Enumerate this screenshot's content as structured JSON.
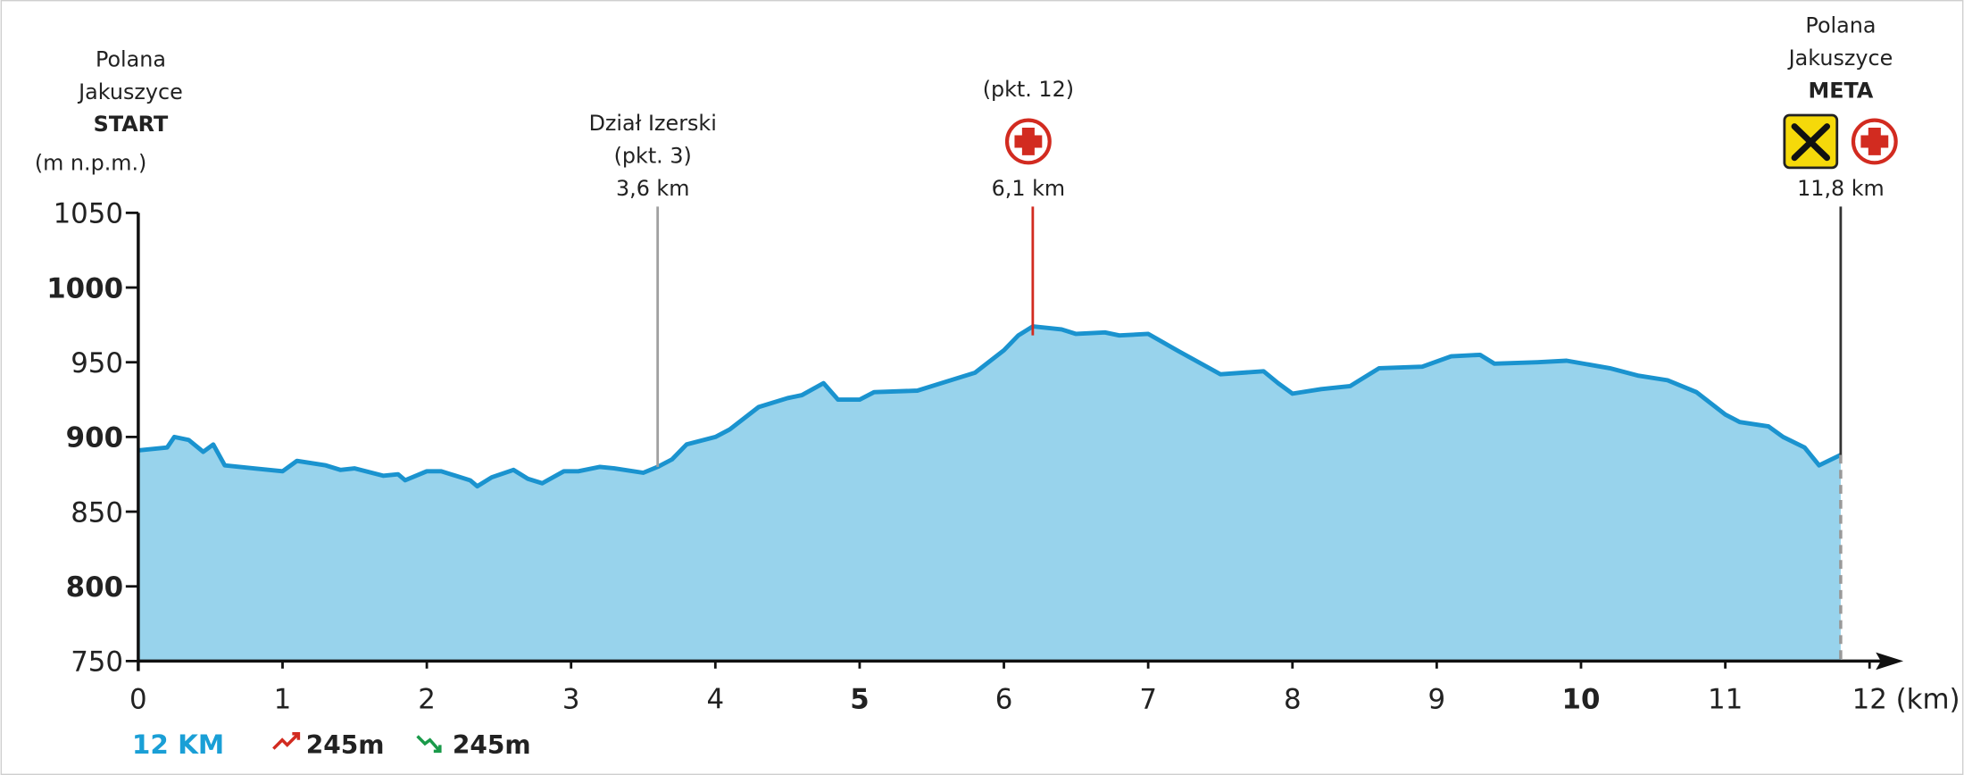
{
  "chart_data": {
    "type": "area",
    "title": "",
    "xlabel": "(km)",
    "ylabel": "(m n.p.m.)",
    "xlim": [
      0,
      12
    ],
    "ylim": [
      750,
      1050
    ],
    "xticks": [
      "0",
      "1",
      "2",
      "3",
      "4",
      "5",
      "6",
      "7",
      "8",
      "9",
      "10",
      "11",
      "12"
    ],
    "xticks_bold": [
      "5",
      "10"
    ],
    "yticks": [
      "750",
      "800",
      "850",
      "900",
      "950",
      "1000",
      "1050"
    ],
    "yticks_bold": [
      "800",
      "900",
      "1000"
    ],
    "colors": {
      "fill": "#98d3ec",
      "line": "#1a93cf"
    },
    "x": [
      0,
      0.2,
      0.25,
      0.35,
      0.45,
      0.52,
      0.6,
      0.8,
      1.0,
      1.1,
      1.3,
      1.4,
      1.5,
      1.7,
      1.8,
      1.85,
      2.0,
      2.1,
      2.3,
      2.35,
      2.45,
      2.6,
      2.7,
      2.8,
      2.95,
      3.05,
      3.2,
      3.3,
      3.5,
      3.6,
      3.7,
      3.8,
      4.0,
      4.1,
      4.3,
      4.5,
      4.6,
      4.75,
      4.85,
      5.0,
      5.1,
      5.4,
      5.6,
      5.8,
      6.0,
      6.1,
      6.2,
      6.4,
      6.5,
      6.7,
      6.8,
      7.0,
      7.2,
      7.5,
      7.8,
      7.9,
      8.0,
      8.2,
      8.4,
      8.6,
      8.9,
      9.1,
      9.3,
      9.4,
      9.7,
      9.9,
      10.2,
      10.4,
      10.6,
      10.8,
      11.0,
      11.1,
      11.3,
      11.4,
      11.55,
      11.65,
      11.8
    ],
    "y": [
      891,
      893,
      900,
      898,
      890,
      895,
      881,
      879,
      877,
      884,
      881,
      878,
      879,
      874,
      875,
      871,
      877,
      877,
      871,
      867,
      873,
      878,
      872,
      869,
      877,
      877,
      880,
      879,
      876,
      880,
      885,
      895,
      900,
      905,
      920,
      926,
      928,
      936,
      925,
      925,
      930,
      931,
      937,
      943,
      958,
      968,
      974,
      972,
      969,
      970,
      968,
      969,
      958,
      942,
      944,
      936,
      929,
      932,
      934,
      946,
      947,
      954,
      955,
      949,
      950,
      951,
      946,
      941,
      938,
      930,
      915,
      910,
      907,
      900,
      893,
      881,
      888
    ],
    "annotations": [
      {
        "km": 0,
        "lines": [
          "Polana",
          "Jakuszyce"
        ],
        "bold": "START"
      },
      {
        "km": 3.6,
        "lines": [
          "Dział Izerski",
          "(pkt. 3)",
          "3,6 km"
        ],
        "color": "#a0a0a0"
      },
      {
        "km": 6.1,
        "lines": [
          "(pkt. 12)",
          "6,1 km"
        ],
        "color": "#d22b20",
        "icons": [
          "first-aid"
        ]
      },
      {
        "km": 11.8,
        "lines": [
          "Polana",
          "Jakuszyce",
          "11,8 km"
        ],
        "bold": "META",
        "color": "#333333",
        "icons": [
          "food",
          "first-aid"
        ]
      }
    ]
  },
  "footer": {
    "distance": "12 KM",
    "ascent": "245m",
    "descent": "245m"
  }
}
